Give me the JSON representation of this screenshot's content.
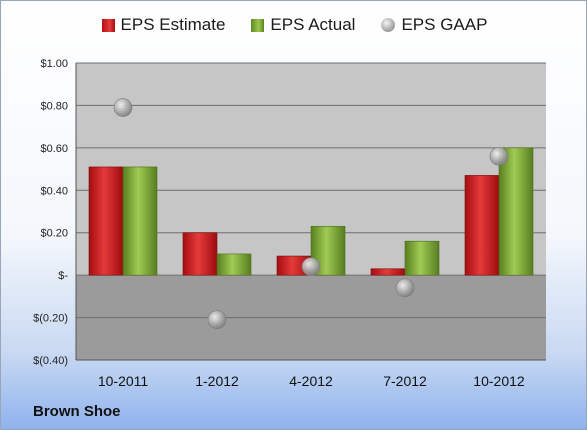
{
  "chart_data": {
    "type": "bar",
    "categories": [
      "10-2011",
      "1-2012",
      "4-2012",
      "7-2012",
      "10-2012"
    ],
    "series": [
      {
        "name": "EPS Estimate",
        "kind": "bar",
        "color": "#d42a2a",
        "values": [
          0.51,
          0.2,
          0.09,
          0.03,
          0.47
        ]
      },
      {
        "name": "EPS Actual",
        "kind": "bar",
        "color": "#8db84a",
        "values": [
          0.51,
          0.1,
          0.23,
          0.16,
          0.6
        ]
      },
      {
        "name": "EPS GAAP",
        "kind": "scatter",
        "color": "#a6a6a6",
        "values": [
          0.79,
          -0.21,
          0.04,
          -0.06,
          0.56
        ]
      }
    ],
    "ylim": [
      -0.4,
      1.0
    ],
    "yticks": [
      {
        "value": 1.0,
        "label": "$1.00"
      },
      {
        "value": 0.8,
        "label": "$0.80"
      },
      {
        "value": 0.6,
        "label": "$0.60"
      },
      {
        "value": 0.4,
        "label": "$0.40"
      },
      {
        "value": 0.2,
        "label": "$0.20"
      },
      {
        "value": 0.0,
        "label": "$-"
      },
      {
        "value": -0.2,
        "label": "$(0.20)"
      },
      {
        "value": -0.4,
        "label": "$(0.40)"
      }
    ],
    "legend_position": "top",
    "grid": true
  },
  "footer": {
    "company": "Brown Shoe"
  }
}
